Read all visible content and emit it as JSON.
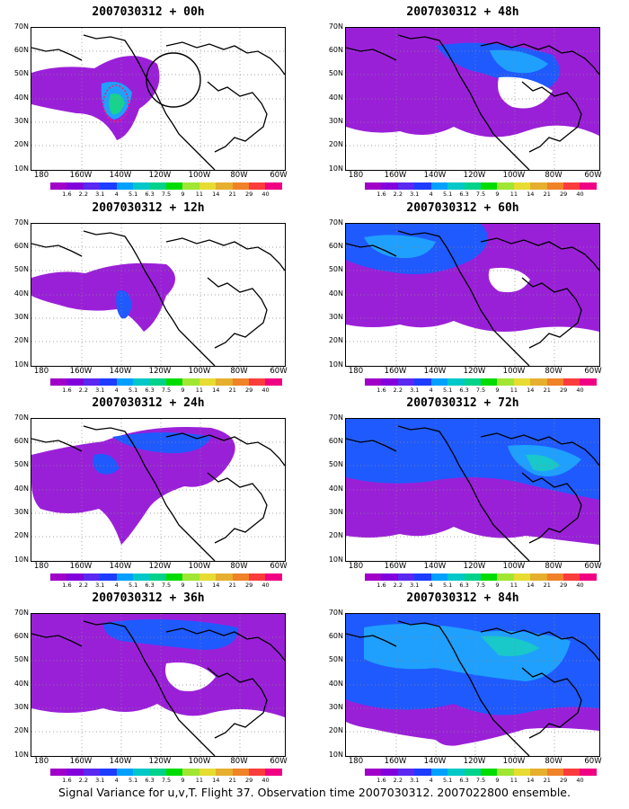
{
  "panels": [
    {
      "title": "2007030312 + 00h"
    },
    {
      "title": "2007030312 + 48h"
    },
    {
      "title": "2007030312 + 12h"
    },
    {
      "title": "2007030312 + 60h"
    },
    {
      "title": "2007030312 + 24h"
    },
    {
      "title": "2007030312 + 72h"
    },
    {
      "title": "2007030312 + 36h"
    },
    {
      "title": "2007030312 + 84h"
    }
  ],
  "lat_labels": [
    "70N",
    "60N",
    "50N",
    "40N",
    "30N",
    "20N",
    "10N"
  ],
  "lon_labels": [
    "180",
    "160W",
    "140W",
    "120W",
    "100W",
    "80W",
    "60W"
  ],
  "colorbar": {
    "labels": [
      "1.6",
      "2.2",
      "3.1",
      "4",
      "5.1",
      "6.3",
      "7.5",
      "9",
      "11",
      "14",
      "21",
      "29",
      "40"
    ],
    "colors": [
      "#a000c8",
      "#8200dc",
      "#5a28f0",
      "#1e3cff",
      "#00a0ff",
      "#00c8c8",
      "#00d28c",
      "#00dc00",
      "#a0e632",
      "#e6dc32",
      "#e6af2d",
      "#f08228",
      "#fa3c3c",
      "#f00082"
    ]
  },
  "caption": "Signal Variance for u,v,T. Flight 37. Observation time 2007030312. 2007022800 ensemble."
}
